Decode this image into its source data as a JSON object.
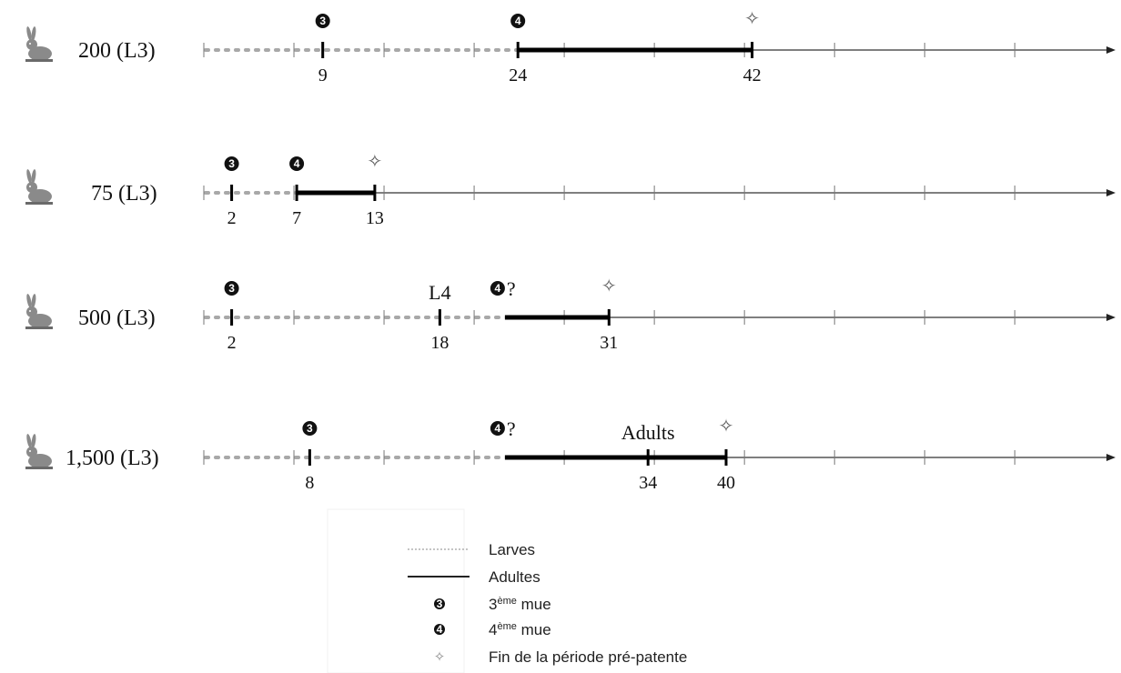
{
  "diagram": {
    "axis": {
      "min": 0,
      "max": 55,
      "tick_step": 5
    },
    "rows": [
      {
        "label": "200 (L3)",
        "third_molt": 9,
        "fourth_molt": 24,
        "fourth_uncertain": false,
        "end_prepatent": 42,
        "adult_start": 24,
        "adult_end": 42,
        "values": [
          "9",
          "24",
          "42"
        ],
        "value_positions": [
          9,
          24,
          42
        ],
        "annotation": null
      },
      {
        "label": "75 (L3)",
        "third_molt": 2,
        "fourth_molt": 7,
        "fourth_uncertain": false,
        "end_prepatent": 13,
        "adult_start": 7,
        "adult_end": 13,
        "values": [
          "2",
          "7",
          "13"
        ],
        "value_positions": [
          2,
          7,
          13
        ],
        "annotation": null
      },
      {
        "label": "500 (L3)",
        "third_molt": 2,
        "fourth_molt": 23,
        "fourth_uncertain": true,
        "end_prepatent": 31,
        "adult_start": 23,
        "adult_end": 31,
        "values": [
          "2",
          "18",
          "31"
        ],
        "value_positions": [
          2,
          18,
          31
        ],
        "annotation": {
          "text": "L4",
          "at": 18
        }
      },
      {
        "label": "1,500 (L3)",
        "third_molt": 8,
        "fourth_molt": 23,
        "fourth_uncertain": true,
        "end_prepatent": 40,
        "adult_start": 23,
        "adult_end": 40,
        "values": [
          "8",
          "34",
          "40"
        ],
        "value_positions": [
          8,
          34,
          40
        ],
        "annotation": {
          "text": "Adults",
          "at": 34
        }
      }
    ],
    "molt_symbols": {
      "third": "3",
      "fourth": "4",
      "uncertain_mark": "?"
    },
    "end_symbol": "✧",
    "host_icon": "rabbit-icon"
  },
  "legend": {
    "larves": "Larves",
    "adultes": "Adultes",
    "third_molt_prefix": "3",
    "third_molt_sup": "ème",
    "third_molt_suffix": " mue",
    "fourth_molt_prefix": "4",
    "fourth_molt_sup": "ème",
    "fourth_molt_suffix": " mue",
    "end_label": "Fin de la période pré-patente"
  },
  "colors": {
    "larvae_dots": "#a8a8a8",
    "adult_line": "#000000",
    "axis": "#333333"
  }
}
